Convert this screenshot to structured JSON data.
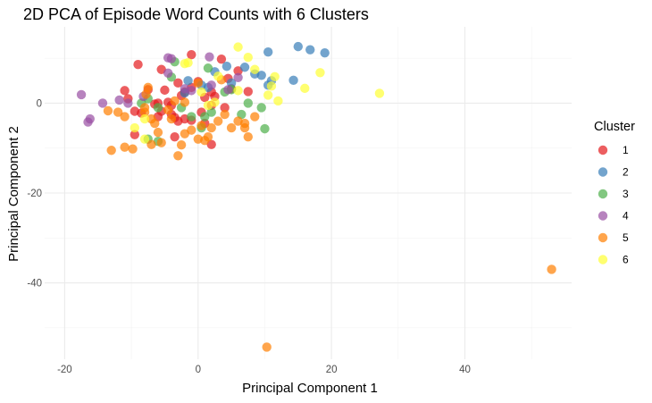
{
  "chart_data": {
    "type": "scatter",
    "title": "2D PCA of Episode Word Counts with 6 Clusters",
    "xlabel": "Principal Component 1",
    "ylabel": "Principal Component 2",
    "xlim": [
      -23,
      56
    ],
    "ylim": [
      -57,
      17
    ],
    "xticks": [
      -20,
      0,
      20,
      40
    ],
    "yticks": [
      -40,
      -20,
      0
    ],
    "grid": true,
    "legend": {
      "title": "Cluster",
      "position": "right"
    },
    "series": [
      {
        "name": "1",
        "color": "#E41A1C",
        "points": [
          [
            -9,
            8.6
          ],
          [
            -11,
            2.8
          ],
          [
            -10.5,
            1
          ],
          [
            -9.5,
            -1.8
          ],
          [
            -8.5,
            -2.2
          ],
          [
            -7.5,
            3
          ],
          [
            -5.5,
            7.5
          ],
          [
            -5,
            2.9
          ],
          [
            -4.5,
            0.2
          ],
          [
            -4,
            -0.5
          ],
          [
            -5.5,
            -1.8
          ],
          [
            -6,
            -3
          ],
          [
            -3.5,
            -3.2
          ],
          [
            -3,
            -4
          ],
          [
            -2,
            -3.5
          ],
          [
            -1,
            -3.8
          ],
          [
            -3,
            4.5
          ],
          [
            -2,
            2.5
          ],
          [
            -1,
            3.5
          ],
          [
            0,
            4.8
          ],
          [
            -1,
            10.8
          ],
          [
            1,
            1.3
          ],
          [
            2,
            -0.5
          ],
          [
            2.5,
            1.5
          ],
          [
            0.5,
            -2
          ],
          [
            1,
            -4.5
          ],
          [
            2,
            -9.2
          ],
          [
            -3.5,
            -7.5
          ],
          [
            3.5,
            9.8
          ],
          [
            4.5,
            5.5
          ],
          [
            5,
            3.2
          ],
          [
            6,
            7.2
          ],
          [
            7.5,
            2.6
          ],
          [
            -6.5,
            -0.2
          ],
          [
            -4,
            -2.5
          ],
          [
            -9.5,
            -7
          ],
          [
            2,
            2.5
          ],
          [
            4,
            -1
          ],
          [
            -2.5,
            1.7
          ],
          [
            -6,
            0
          ]
        ]
      },
      {
        "name": "2",
        "color": "#377EB8",
        "points": [
          [
            10.5,
            11.4
          ],
          [
            15,
            12.6
          ],
          [
            16.8,
            11.9
          ],
          [
            19,
            11.2
          ],
          [
            14.3,
            5.1
          ],
          [
            10.5,
            4
          ],
          [
            8.5,
            6.5
          ],
          [
            9.5,
            6.2
          ],
          [
            4.3,
            8.2
          ],
          [
            7,
            8
          ],
          [
            2.5,
            7
          ],
          [
            0.5,
            4
          ],
          [
            5,
            4.5
          ],
          [
            -1.5,
            5
          ],
          [
            1.5,
            3.5
          ],
          [
            -2,
            2.3
          ],
          [
            11,
            5
          ]
        ]
      },
      {
        "name": "3",
        "color": "#4DAF4A",
        "points": [
          [
            -7.5,
            1
          ],
          [
            -8.5,
            0
          ],
          [
            -6,
            -1
          ],
          [
            -3.5,
            9.2
          ],
          [
            -4,
            5.8
          ],
          [
            -2.5,
            -1
          ],
          [
            -1,
            -3
          ],
          [
            0.5,
            -5.5
          ],
          [
            1,
            -3
          ],
          [
            1.5,
            7.8
          ],
          [
            2,
            -2
          ],
          [
            5,
            3
          ],
          [
            6.5,
            -2.5
          ],
          [
            7.5,
            0
          ],
          [
            9.5,
            -1
          ],
          [
            10,
            -5.7
          ],
          [
            -7.5,
            -8
          ],
          [
            -6,
            -8.5
          ],
          [
            4,
            2.5
          ]
        ]
      },
      {
        "name": "4",
        "color": "#984EA3",
        "points": [
          [
            -17.5,
            1.9
          ],
          [
            -16.5,
            -4.2
          ],
          [
            -16.2,
            -3.5
          ],
          [
            -14.3,
            0
          ],
          [
            -11.8,
            0.7
          ],
          [
            -4.5,
            10.1
          ],
          [
            -4,
            9.9
          ],
          [
            -4.5,
            6.7
          ],
          [
            -2,
            3.2
          ],
          [
            -1,
            2.8
          ],
          [
            1.7,
            10.3
          ],
          [
            2,
            4
          ],
          [
            4.5,
            3
          ],
          [
            6,
            5.7
          ],
          [
            -8.2,
            1.5
          ],
          [
            -10.5,
            0
          ]
        ]
      },
      {
        "name": "5",
        "color": "#FF7F00",
        "points": [
          [
            -13.5,
            -1.7
          ],
          [
            -13,
            -10.5
          ],
          [
            -12,
            -2
          ],
          [
            -11,
            -3
          ],
          [
            -11,
            -9.8
          ],
          [
            -9.8,
            -10.2
          ],
          [
            -8,
            -1
          ],
          [
            -7.5,
            3.5
          ],
          [
            -7,
            -3.5
          ],
          [
            -7,
            -9.2
          ],
          [
            -6,
            -6.5
          ],
          [
            -5.5,
            -8.8
          ],
          [
            -4.5,
            -1.5
          ],
          [
            -4,
            -3.5
          ],
          [
            -3.5,
            0.5
          ],
          [
            -3,
            -11.7
          ],
          [
            -2.5,
            -9.3
          ],
          [
            -2,
            -6.8
          ],
          [
            -2,
            0.2
          ],
          [
            -1,
            -6
          ],
          [
            0,
            4.5
          ],
          [
            0,
            -8
          ],
          [
            0.5,
            -5
          ],
          [
            1,
            -8.3
          ],
          [
            1.5,
            -7.5
          ],
          [
            2,
            -5.5
          ],
          [
            3,
            -4
          ],
          [
            4,
            -2.5
          ],
          [
            5,
            -5.5
          ],
          [
            6,
            -4
          ],
          [
            7,
            -4.5
          ],
          [
            7.5,
            -7.5
          ],
          [
            8.5,
            -3
          ],
          [
            -6.5,
            -4.5
          ],
          [
            -7.8,
            2
          ],
          [
            3.5,
            5.2
          ],
          [
            7,
            -5.5
          ],
          [
            53,
            -37
          ],
          [
            10.3,
            -54.3
          ],
          [
            -8,
            -2
          ]
        ]
      },
      {
        "name": "6",
        "color": "#FFFF33",
        "points": [
          [
            -9.5,
            -5.5
          ],
          [
            -8,
            -8
          ],
          [
            -2,
            8.8
          ],
          [
            -1.5,
            9
          ],
          [
            0.5,
            2.5
          ],
          [
            1.5,
            -0.5
          ],
          [
            6,
            12.5
          ],
          [
            6,
            2.8
          ],
          [
            7.5,
            10.2
          ],
          [
            8.5,
            7.5
          ],
          [
            10.5,
            1.8
          ],
          [
            11,
            3.8
          ],
          [
            11.5,
            5.9
          ],
          [
            12,
            0.5
          ],
          [
            16,
            3.3
          ],
          [
            18.3,
            6.8
          ],
          [
            27.2,
            2.2
          ],
          [
            3,
            6
          ],
          [
            -8,
            -3.5
          ],
          [
            2.5,
            0.2
          ]
        ]
      }
    ]
  }
}
